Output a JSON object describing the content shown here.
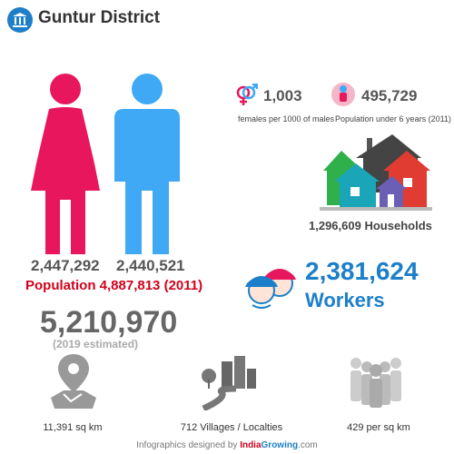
{
  "header": {
    "title": "Guntur District",
    "icon": "government-building-icon"
  },
  "population": {
    "females": "2,447,292",
    "males": "2,440,521",
    "line_prefix": "Population",
    "total": "4,887,813",
    "year": "(2011)",
    "estimate": "5,210,970",
    "estimate_note": "(2019 estimated)"
  },
  "stats": {
    "sex_ratio_value": "1,003",
    "sex_ratio_label": "females per 1000 of males",
    "under6_value": "495,729",
    "under6_label": "Population under 6 years (2011)",
    "households_value": "1,296,609",
    "households_label": "Households",
    "workers_value": "2,381,624",
    "workers_label": "Workers"
  },
  "bottom": {
    "area": "11,391 sq km",
    "villages": "712 Villages / Localties",
    "density": "429 per sq km"
  },
  "footer": {
    "prefix": "Infographics designed by",
    "brand_a": "India",
    "brand_b": "Growing",
    "brand_c": ".com"
  },
  "colors": {
    "female": "#e8175d",
    "male": "#3fa9f5",
    "accent_red": "#d0021b",
    "accent_blue": "#1d7fc9",
    "gray_icon": "#999999"
  }
}
